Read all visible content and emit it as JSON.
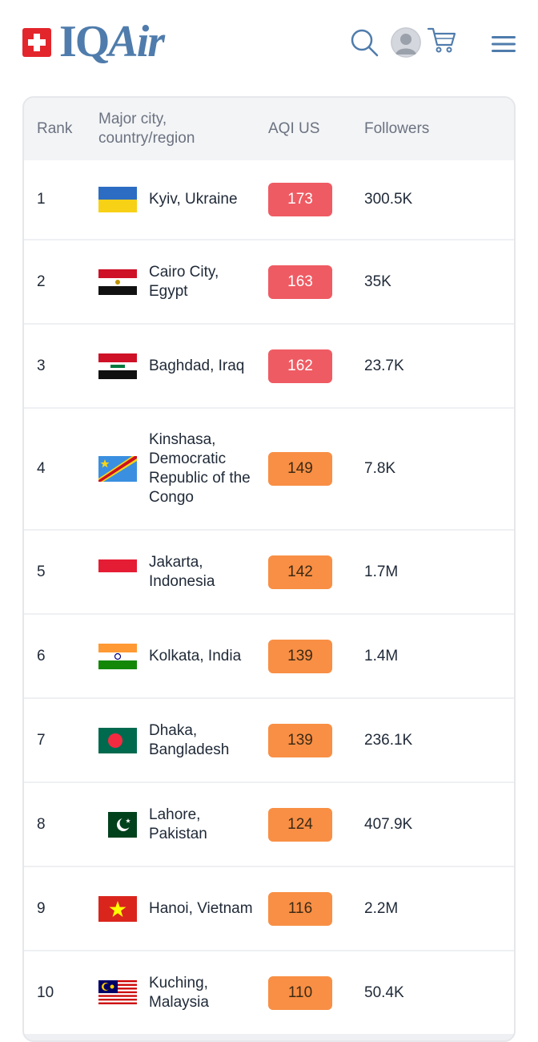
{
  "header": {
    "logo_prefix": "IQ",
    "logo_suffix": "Air",
    "icons": [
      "swiss-flag-icon",
      "search-icon",
      "user-avatar-icon",
      "cart-icon",
      "hamburger-menu-icon"
    ]
  },
  "colors": {
    "brand": "#4f7cac",
    "aqi_unhealthy": "#ef5b63",
    "aqi_sensitive": "#f88f45"
  },
  "table": {
    "headers": {
      "rank": "Rank",
      "city": "Major city, country/region",
      "aqi": "AQI US",
      "followers": "Followers"
    },
    "rows": [
      {
        "rank": "1",
        "city": "Kyiv, Ukraine",
        "aqi": "173",
        "level": "red",
        "followers": "300.5K",
        "flag": "ukraine-flag-icon"
      },
      {
        "rank": "2",
        "city": "Cairo City, Egypt",
        "aqi": "163",
        "level": "red",
        "followers": "35K",
        "flag": "egypt-flag-icon"
      },
      {
        "rank": "3",
        "city": "Baghdad, Iraq",
        "aqi": "162",
        "level": "red",
        "followers": "23.7K",
        "flag": "iraq-flag-icon"
      },
      {
        "rank": "4",
        "city": "Kinshasa, Democratic Republic of the Congo",
        "aqi": "149",
        "level": "orange",
        "followers": "7.8K",
        "flag": "dr-congo-flag-icon"
      },
      {
        "rank": "5",
        "city": "Jakarta, Indonesia",
        "aqi": "142",
        "level": "orange",
        "followers": "1.7M",
        "flag": "indonesia-flag-icon"
      },
      {
        "rank": "6",
        "city": "Kolkata, India",
        "aqi": "139",
        "level": "orange",
        "followers": "1.4M",
        "flag": "india-flag-icon"
      },
      {
        "rank": "7",
        "city": "Dhaka, Bangladesh",
        "aqi": "139",
        "level": "orange",
        "followers": "236.1K",
        "flag": "bangladesh-flag-icon"
      },
      {
        "rank": "8",
        "city": "Lahore, Pakistan",
        "aqi": "124",
        "level": "orange",
        "followers": "407.9K",
        "flag": "pakistan-flag-icon"
      },
      {
        "rank": "9",
        "city": "Hanoi, Vietnam",
        "aqi": "116",
        "level": "orange",
        "followers": "2.2M",
        "flag": "vietnam-flag-icon"
      },
      {
        "rank": "10",
        "city": "Kuching, Malaysia",
        "aqi": "110",
        "level": "orange",
        "followers": "50.4K",
        "flag": "malaysia-flag-icon"
      }
    ]
  }
}
